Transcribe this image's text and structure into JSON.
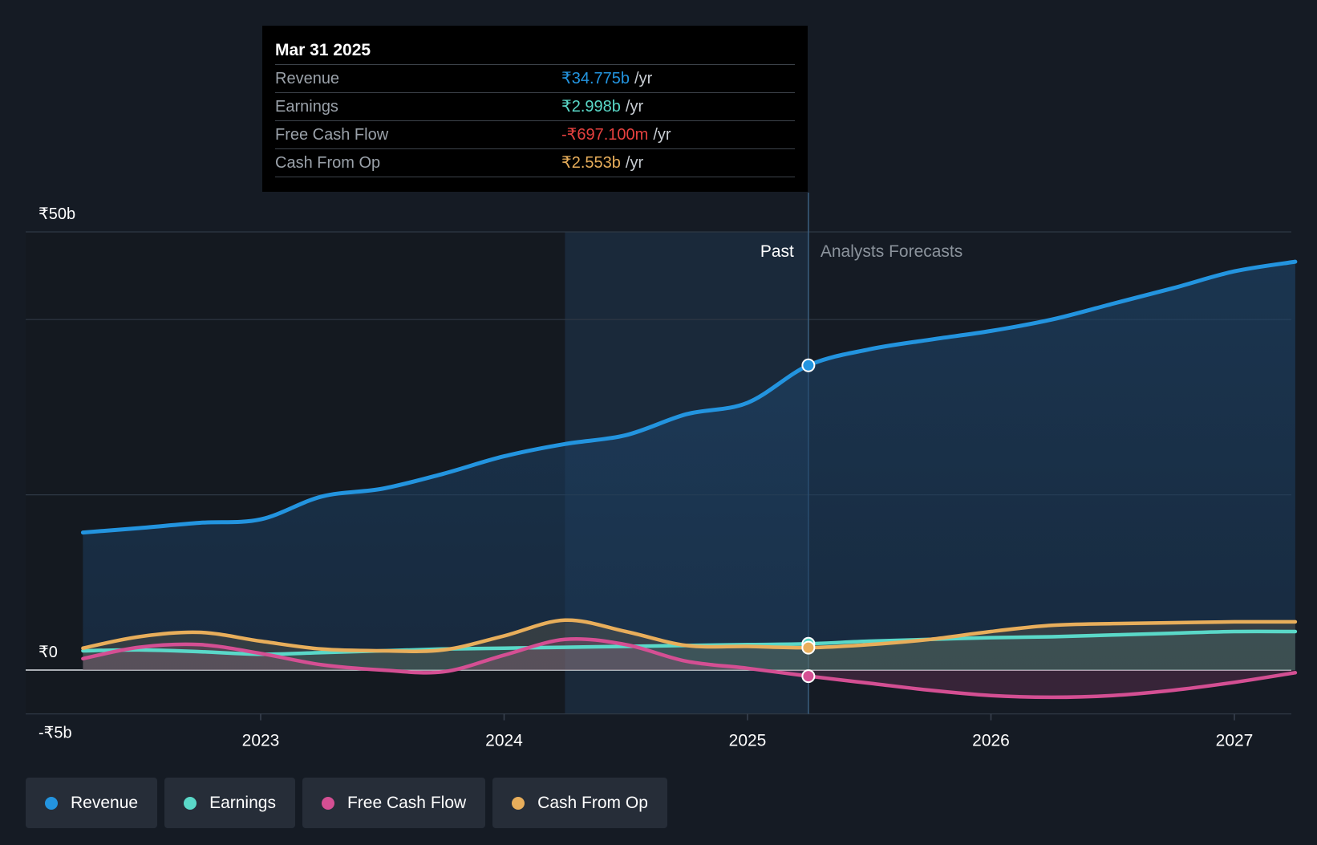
{
  "chart_data": {
    "type": "area",
    "x_unit": "year",
    "xlim": [
      2022.22,
      2027.25
    ],
    "ylim": [
      -5,
      50
    ],
    "y_axis_labels": [
      "₹50b",
      "₹0",
      "-₹5b"
    ],
    "x_tick_labels": [
      "2023",
      "2024",
      "2025",
      "2026",
      "2027"
    ],
    "x_tick_values": [
      2023,
      2024,
      2025,
      2026,
      2027
    ],
    "gridlines_y": [
      50,
      40,
      20,
      0,
      -5
    ],
    "past_boundary": 2025.25,
    "highlight_start": 2024.25,
    "past_label": "Past",
    "forecast_label": "Analysts Forecasts",
    "series": [
      {
        "name": "Revenue",
        "color": "#2394df",
        "points": [
          [
            2022.27,
            15.7
          ],
          [
            2022.5,
            16.2
          ],
          [
            2022.75,
            16.8
          ],
          [
            2023.0,
            17.2
          ],
          [
            2023.25,
            19.8
          ],
          [
            2023.5,
            20.7
          ],
          [
            2023.75,
            22.4
          ],
          [
            2024.0,
            24.4
          ],
          [
            2024.25,
            25.8
          ],
          [
            2024.5,
            26.8
          ],
          [
            2024.75,
            29.2
          ],
          [
            2025.0,
            30.5
          ],
          [
            2025.25,
            34.775
          ],
          [
            2025.5,
            36.6
          ],
          [
            2025.75,
            37.7
          ],
          [
            2026.0,
            38.7
          ],
          [
            2026.25,
            40.0
          ],
          [
            2026.5,
            41.8
          ],
          [
            2026.75,
            43.6
          ],
          [
            2027.0,
            45.5
          ],
          [
            2027.25,
            46.6
          ]
        ]
      },
      {
        "name": "Earnings",
        "color": "#5ad8c8",
        "points": [
          [
            2022.27,
            2.2
          ],
          [
            2022.5,
            2.3
          ],
          [
            2022.75,
            2.1
          ],
          [
            2023.0,
            1.8
          ],
          [
            2023.25,
            2.0
          ],
          [
            2023.5,
            2.2
          ],
          [
            2023.75,
            2.4
          ],
          [
            2024.0,
            2.5
          ],
          [
            2024.25,
            2.6
          ],
          [
            2024.5,
            2.7
          ],
          [
            2024.75,
            2.8
          ],
          [
            2025.0,
            2.9
          ],
          [
            2025.25,
            2.998
          ],
          [
            2025.5,
            3.3
          ],
          [
            2025.75,
            3.5
          ],
          [
            2026.0,
            3.7
          ],
          [
            2026.25,
            3.8
          ],
          [
            2026.5,
            4.0
          ],
          [
            2026.75,
            4.2
          ],
          [
            2027.0,
            4.4
          ],
          [
            2027.25,
            4.4
          ]
        ]
      },
      {
        "name": "Free Cash Flow",
        "color": "#d44f93",
        "points": [
          [
            2022.27,
            1.3
          ],
          [
            2022.5,
            2.6
          ],
          [
            2022.75,
            2.9
          ],
          [
            2023.0,
            1.9
          ],
          [
            2023.25,
            0.6
          ],
          [
            2023.5,
            0.0
          ],
          [
            2023.75,
            -0.2
          ],
          [
            2024.0,
            1.7
          ],
          [
            2024.25,
            3.5
          ],
          [
            2024.5,
            2.9
          ],
          [
            2024.75,
            1.0
          ],
          [
            2025.0,
            0.2
          ],
          [
            2025.25,
            -0.6971
          ],
          [
            2025.5,
            -1.5
          ],
          [
            2025.75,
            -2.3
          ],
          [
            2026.0,
            -2.9
          ],
          [
            2026.25,
            -3.1
          ],
          [
            2026.5,
            -2.9
          ],
          [
            2026.75,
            -2.3
          ],
          [
            2027.0,
            -1.4
          ],
          [
            2027.25,
            -0.3
          ]
        ]
      },
      {
        "name": "Cash From Op",
        "color": "#e8ae5b",
        "points": [
          [
            2022.27,
            2.5
          ],
          [
            2022.5,
            3.8
          ],
          [
            2022.75,
            4.3
          ],
          [
            2023.0,
            3.3
          ],
          [
            2023.25,
            2.4
          ],
          [
            2023.5,
            2.2
          ],
          [
            2023.75,
            2.3
          ],
          [
            2024.0,
            3.9
          ],
          [
            2024.25,
            5.7
          ],
          [
            2024.5,
            4.4
          ],
          [
            2024.75,
            2.8
          ],
          [
            2025.0,
            2.7
          ],
          [
            2025.25,
            2.553
          ],
          [
            2025.5,
            2.9
          ],
          [
            2025.75,
            3.5
          ],
          [
            2026.0,
            4.4
          ],
          [
            2026.25,
            5.1
          ],
          [
            2026.5,
            5.3
          ],
          [
            2026.75,
            5.4
          ],
          [
            2027.0,
            5.5
          ],
          [
            2027.25,
            5.5
          ]
        ]
      }
    ]
  },
  "tooltip": {
    "date": "Mar 31 2025",
    "rows": [
      {
        "label": "Revenue",
        "value": "₹34.775b",
        "unit": "/yr",
        "color": "#2394df"
      },
      {
        "label": "Earnings",
        "value": "₹2.998b",
        "unit": "/yr",
        "color": "#5ad8c8"
      },
      {
        "label": "Free Cash Flow",
        "value": "-₹697.100m",
        "unit": "/yr",
        "color": "#e6413f"
      },
      {
        "label": "Cash From Op",
        "value": "₹2.553b",
        "unit": "/yr",
        "color": "#e8ae5b"
      }
    ]
  },
  "legend": [
    {
      "label": "Revenue",
      "color": "#2394df"
    },
    {
      "label": "Earnings",
      "color": "#5ad8c8"
    },
    {
      "label": "Free Cash Flow",
      "color": "#d44f93"
    },
    {
      "label": "Cash From Op",
      "color": "#e8ae5b"
    }
  ]
}
